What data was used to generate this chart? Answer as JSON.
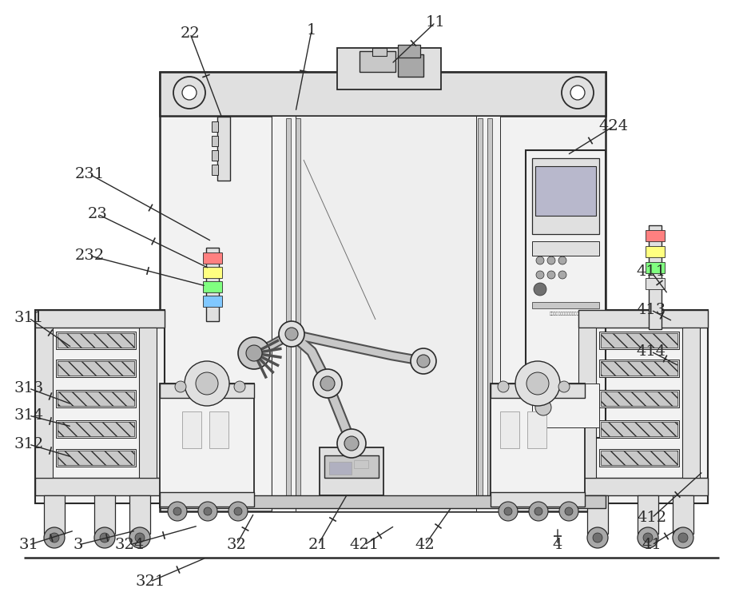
{
  "bg": "#ffffff",
  "lc": "#2a2a2a",
  "g1": "#f2f2f2",
  "g2": "#e0e0e0",
  "g3": "#c8c8c8",
  "g4": "#a8a8a8",
  "g5": "#707070",
  "g6": "#505050",
  "annotations": [
    [
      "1",
      390,
      38,
      370,
      140
    ],
    [
      "11",
      545,
      28,
      490,
      80
    ],
    [
      "22",
      238,
      42,
      278,
      148
    ],
    [
      "231",
      112,
      218,
      265,
      302
    ],
    [
      "23",
      122,
      268,
      262,
      336
    ],
    [
      "232",
      112,
      320,
      258,
      358
    ],
    [
      "311",
      36,
      398,
      90,
      435
    ],
    [
      "313",
      36,
      486,
      90,
      506
    ],
    [
      "314",
      36,
      520,
      90,
      534
    ],
    [
      "312",
      36,
      556,
      90,
      572
    ],
    [
      "31",
      36,
      682,
      93,
      664
    ],
    [
      "3",
      98,
      682,
      170,
      664
    ],
    [
      "324",
      162,
      682,
      248,
      658
    ],
    [
      "321",
      188,
      728,
      258,
      698
    ],
    [
      "32",
      296,
      682,
      318,
      642
    ],
    [
      "21",
      398,
      682,
      435,
      618
    ],
    [
      "421",
      456,
      682,
      494,
      658
    ],
    [
      "42",
      532,
      682,
      565,
      635
    ],
    [
      "4",
      698,
      682,
      698,
      660
    ],
    [
      "41",
      816,
      682,
      852,
      660
    ],
    [
      "412",
      816,
      648,
      880,
      590
    ],
    [
      "411",
      815,
      340,
      836,
      368
    ],
    [
      "413",
      815,
      388,
      842,
      402
    ],
    [
      "414",
      815,
      440,
      850,
      458
    ],
    [
      "424",
      768,
      158,
      710,
      194
    ]
  ]
}
